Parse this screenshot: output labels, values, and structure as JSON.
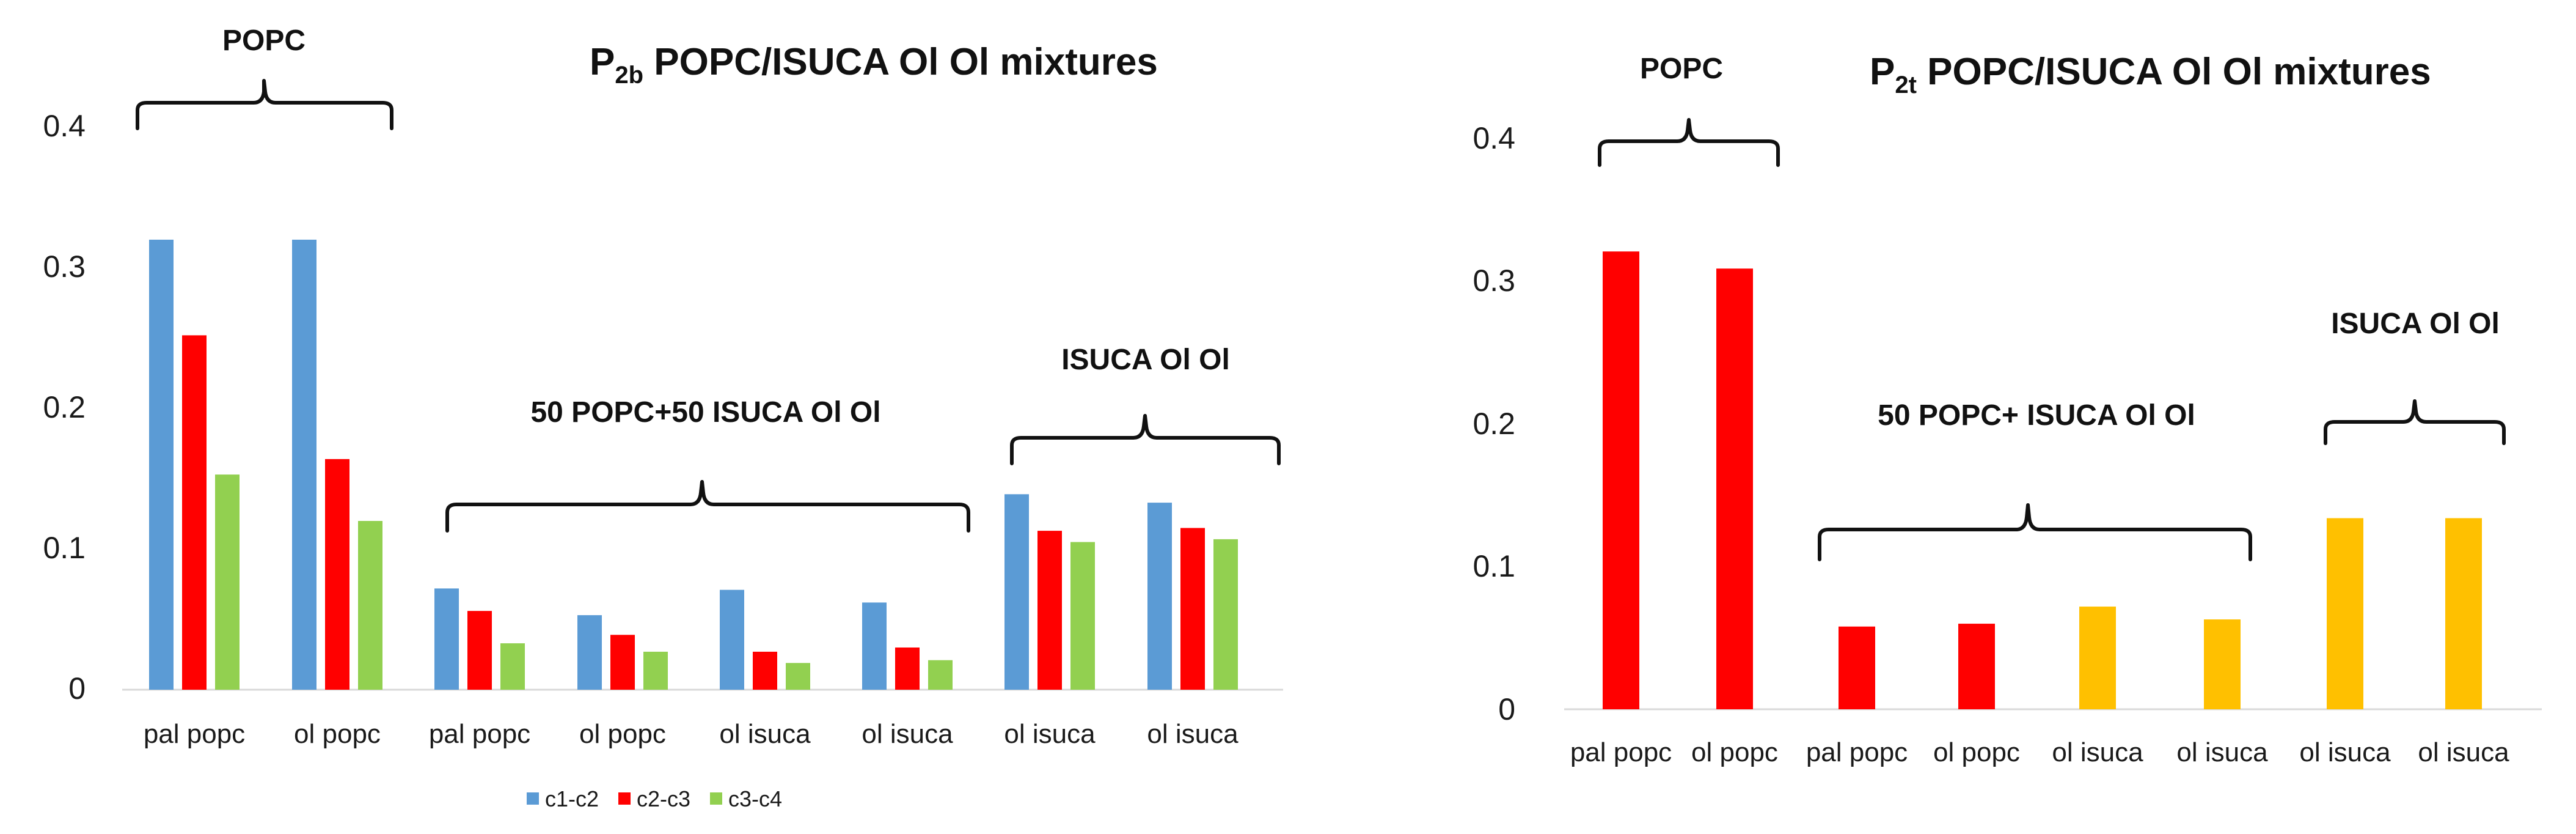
{
  "chart_data": [
    {
      "type": "bar",
      "title": {
        "prefix": "P",
        "sub": "2b",
        "rest": " POPC/ISUCA Ol Ol mixtures"
      },
      "categories": [
        "pal popc",
        "ol popc",
        "pal popc",
        "ol popc",
        "ol isuca",
        "ol isuca",
        "ol isuca",
        "ol isuca"
      ],
      "series": [
        {
          "name": "c1-c2",
          "color": "#5b9bd5",
          "values": [
            0.32,
            0.32,
            0.072,
            0.053,
            0.071,
            0.062,
            0.139,
            0.133
          ]
        },
        {
          "name": "c2-c3",
          "color": "#ff0000",
          "values": [
            0.252,
            0.164,
            0.056,
            0.039,
            0.027,
            0.03,
            0.113,
            0.115
          ]
        },
        {
          "name": "c3-c4",
          "color": "#92d050",
          "values": [
            0.153,
            0.12,
            0.033,
            0.027,
            0.019,
            0.021,
            0.105,
            0.107
          ]
        }
      ],
      "ylim": [
        0,
        0.4
      ],
      "yticks": [
        "0",
        "0.1",
        "0.2",
        "0.3",
        "0.4"
      ],
      "legend_position": "bottom",
      "group_labels": [
        "POPC",
        "50 POPC+50 ISUCA Ol Ol",
        "ISUCA Ol Ol"
      ]
    },
    {
      "type": "bar",
      "title": {
        "prefix": "P",
        "sub": "2t",
        "rest": " POPC/ISUCA Ol Ol mixtures"
      },
      "categories": [
        "pal popc",
        "ol popc",
        "pal popc",
        "ol popc",
        "ol isuca",
        "ol isuca",
        "ol isuca",
        "ol isuca"
      ],
      "values": [
        0.321,
        0.309,
        0.058,
        0.06,
        0.072,
        0.063,
        0.134,
        0.134
      ],
      "bar_colors": [
        "#ff0000",
        "#ff0000",
        "#ff0000",
        "#ff0000",
        "#ffc000",
        "#ffc000",
        "#ffc000",
        "#ffc000"
      ],
      "ylim": [
        0,
        0.4
      ],
      "yticks": [
        "0",
        "0.1",
        "0.2",
        "0.3",
        "0.4"
      ],
      "group_labels": [
        "POPC",
        "50 POPC+ ISUCA Ol Ol",
        "ISUCA Ol Ol"
      ]
    }
  ]
}
